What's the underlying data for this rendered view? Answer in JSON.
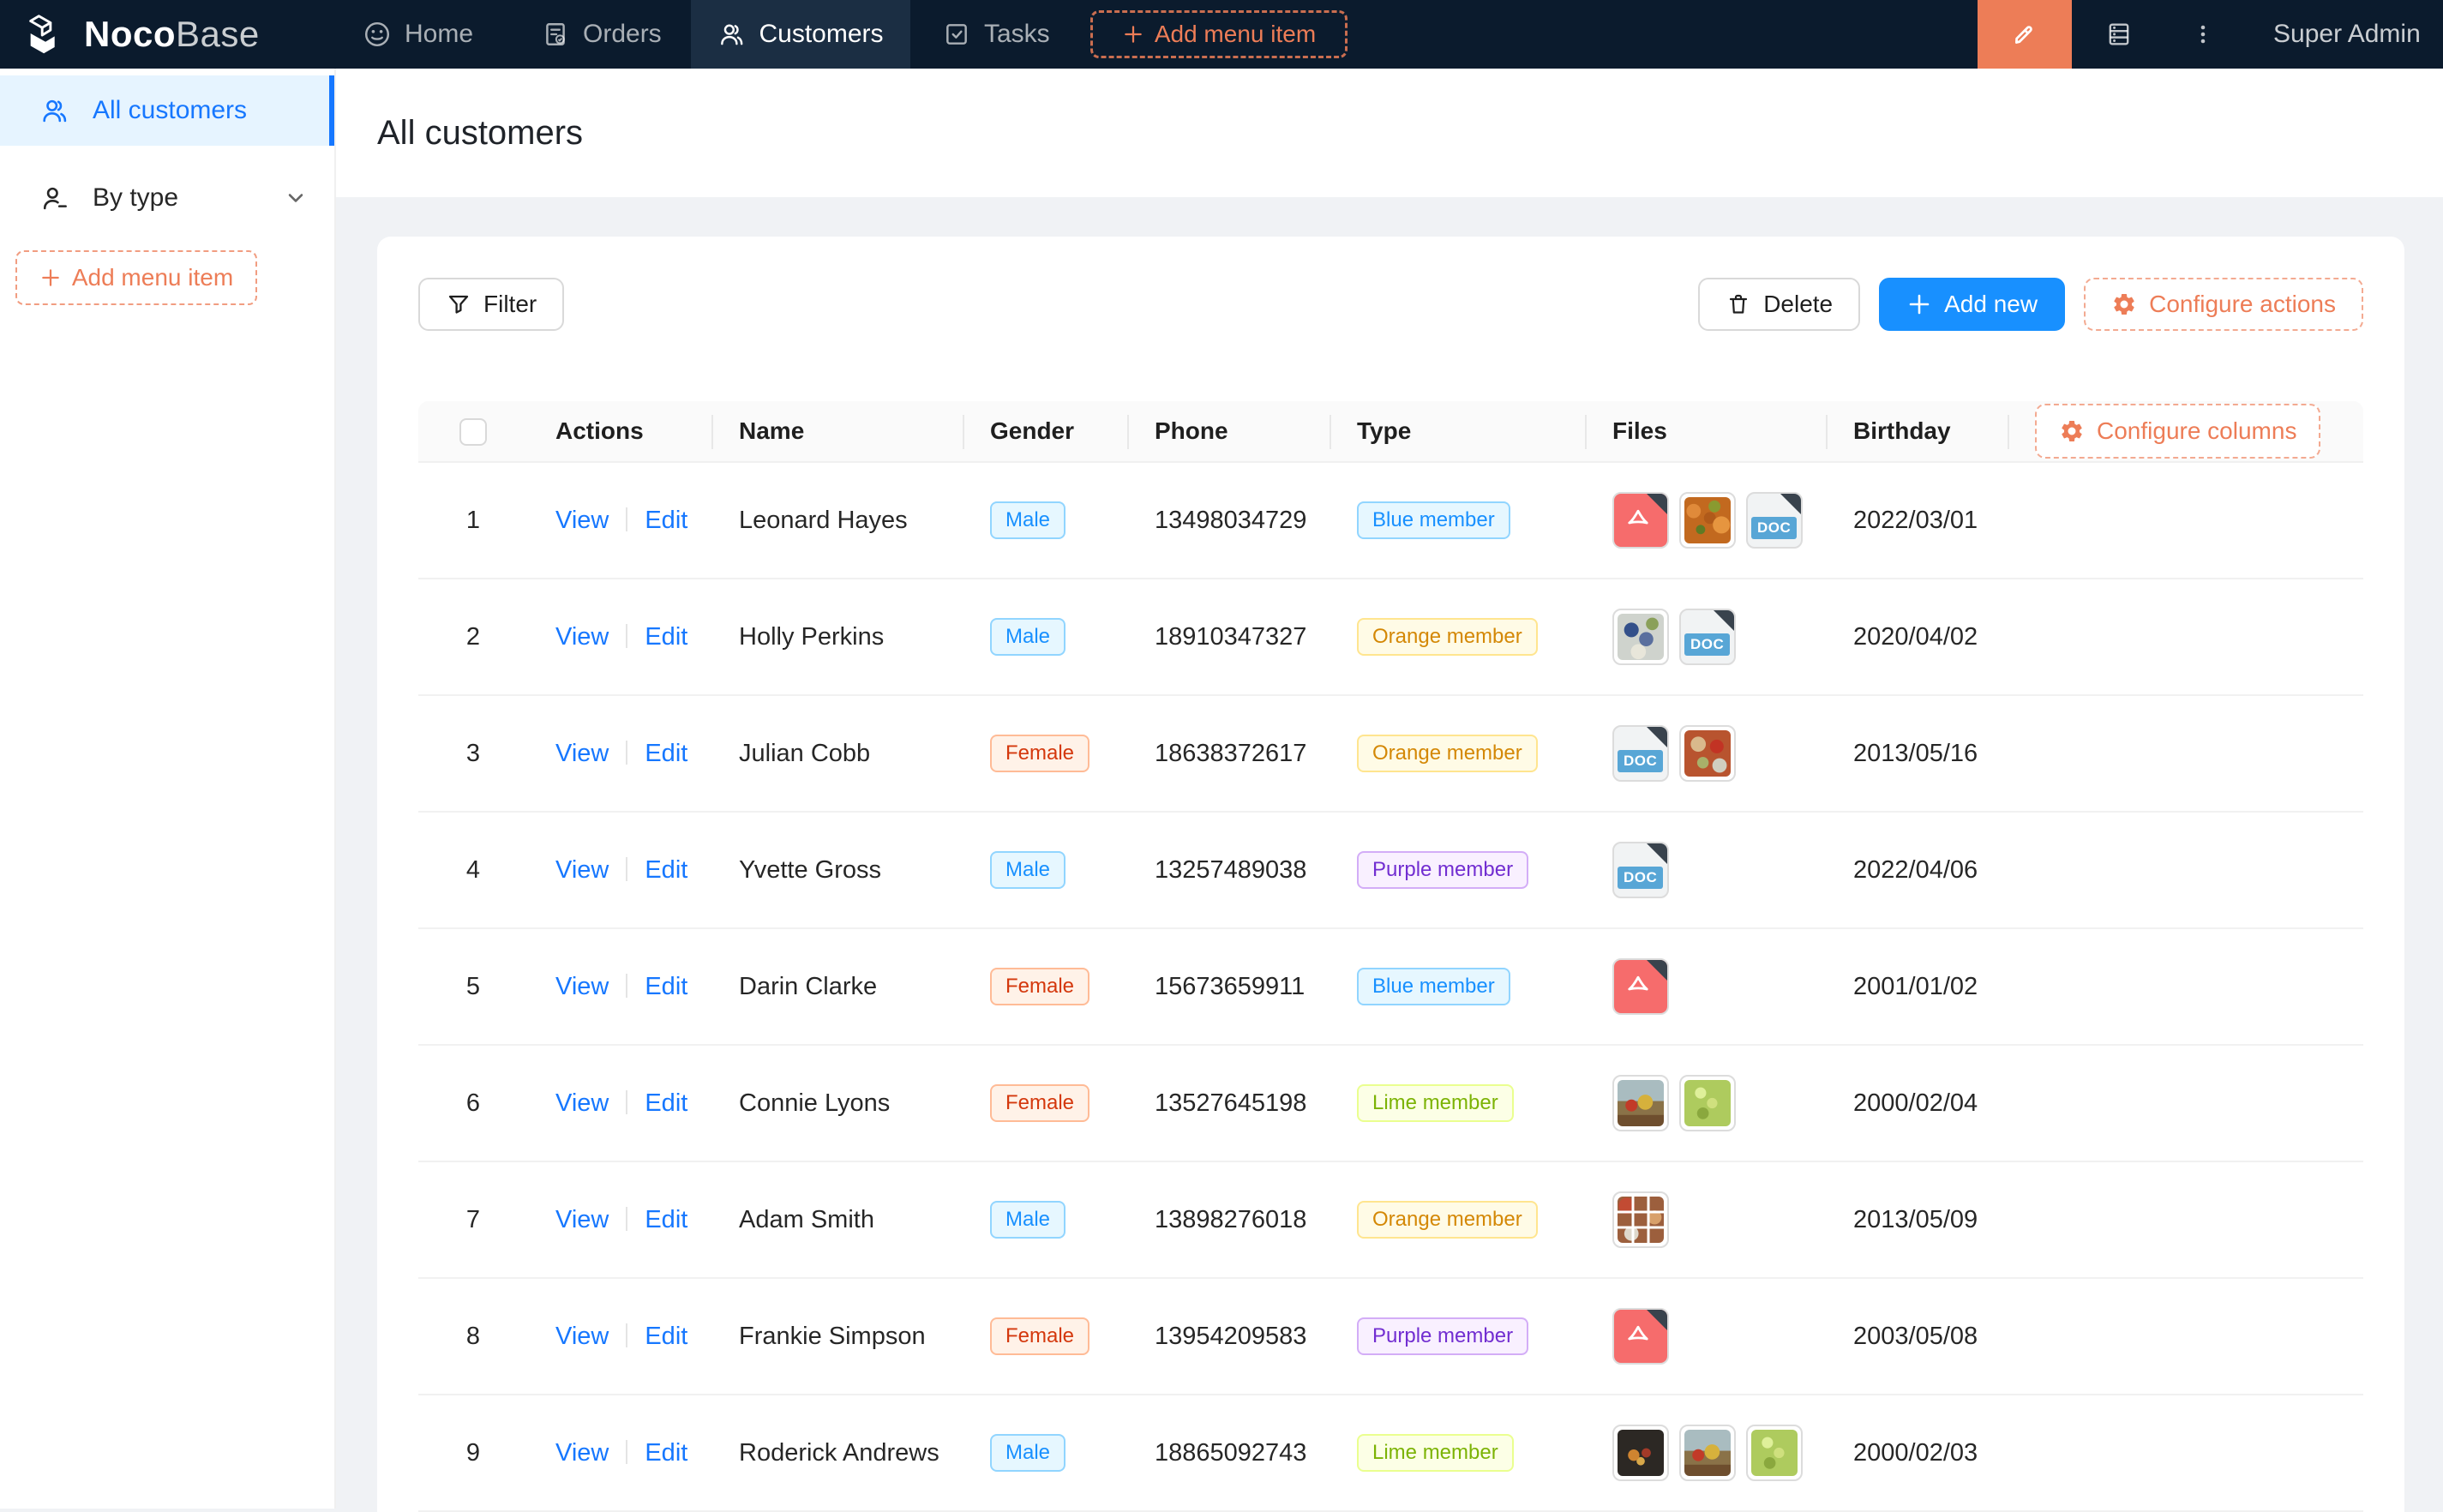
{
  "colors": {
    "navbar_bg": "#0b1b2d",
    "navbar_active_bg": "#1b2e43",
    "accent_orange": "#ed7d57",
    "primary_blue": "#1890ff",
    "link_blue": "#1677ff",
    "sidebar_active_bg": "#e6f4ff"
  },
  "header": {
    "brand": {
      "bold": "Noco",
      "light": "Base"
    },
    "nav": [
      {
        "label": "Home",
        "icon": "home-smiley-icon"
      },
      {
        "label": "Orders",
        "icon": "orders-receipt-icon"
      },
      {
        "label": "Customers",
        "icon": "customers-people-icon",
        "active": true
      },
      {
        "label": "Tasks",
        "icon": "tasks-check-icon"
      }
    ],
    "add_menu_label": "Add menu item",
    "user": "Super Admin"
  },
  "sidebar": {
    "items": [
      {
        "label": "All customers",
        "icon": "users-icon",
        "active": true
      },
      {
        "label": "By type",
        "icon": "user-group-icon",
        "collapsible": true
      }
    ],
    "add_menu_label": "Add menu item"
  },
  "page": {
    "title": "All customers"
  },
  "toolbar": {
    "filter_label": "Filter",
    "delete_label": "Delete",
    "add_new_label": "Add new",
    "configure_actions_label": "Configure actions"
  },
  "table": {
    "columns": {
      "actions": "Actions",
      "name": "Name",
      "gender": "Gender",
      "phone": "Phone",
      "type": "Type",
      "files": "Files",
      "birthday": "Birthday"
    },
    "configure_columns_label": "Configure columns",
    "actions": {
      "view": "View",
      "edit": "Edit"
    },
    "doc_badge": "DOC",
    "tag_colors": {
      "Male": {
        "bg": "#e6f7ff",
        "border": "#91d5ff",
        "text": "#1890ff"
      },
      "Female": {
        "bg": "#fff2e8",
        "border": "#ffbb96",
        "text": "#d4380d"
      },
      "Blue member": {
        "bg": "#e6f7ff",
        "border": "#91d5ff",
        "text": "#1890ff"
      },
      "Orange member": {
        "bg": "#fffbe6",
        "border": "#ffe58f",
        "text": "#d48806"
      },
      "Purple member": {
        "bg": "#f9f0ff",
        "border": "#d3adf7",
        "text": "#722ed1"
      },
      "Lime member": {
        "bg": "#fcffe6",
        "border": "#eaff8f",
        "text": "#7cb305"
      }
    },
    "rows": [
      {
        "index": 1,
        "name": "Leonard Hayes",
        "gender": "Male",
        "phone": "13498034729",
        "type": "Blue member",
        "files": [
          "pdf",
          "photo-warm",
          "doc"
        ],
        "birthday": "2022/03/01"
      },
      {
        "index": 2,
        "name": "Holly Perkins",
        "gender": "Male",
        "phone": "18910347327",
        "type": "Orange member",
        "files": [
          "photo-people",
          "doc"
        ],
        "birthday": "2020/04/02"
      },
      {
        "index": 3,
        "name": "Julian Cobb",
        "gender": "Female",
        "phone": "18638372617",
        "type": "Orange member",
        "files": [
          "doc",
          "photo-tomato"
        ],
        "birthday": "2013/05/16"
      },
      {
        "index": 4,
        "name": "Yvette Gross",
        "gender": "Male",
        "phone": "13257489038",
        "type": "Purple member",
        "files": [
          "doc"
        ],
        "birthday": "2022/04/06"
      },
      {
        "index": 5,
        "name": "Darin Clarke",
        "gender": "Female",
        "phone": "15673659911",
        "type": "Blue member",
        "files": [
          "pdf"
        ],
        "birthday": "2001/01/02"
      },
      {
        "index": 6,
        "name": "Connie Lyons",
        "gender": "Female",
        "phone": "13527645198",
        "type": "Lime member",
        "files": [
          "photo-fruit",
          "photo-grapes"
        ],
        "birthday": "2000/02/04"
      },
      {
        "index": 7,
        "name": "Adam Smith",
        "gender": "Male",
        "phone": "13898276018",
        "type": "Orange member",
        "files": [
          "photo-collage"
        ],
        "birthday": "2013/05/09"
      },
      {
        "index": 8,
        "name": "Frankie Simpson",
        "gender": "Female",
        "phone": "13954209583",
        "type": "Purple member",
        "files": [
          "pdf"
        ],
        "birthday": "2003/05/08"
      },
      {
        "index": 9,
        "name": "Roderick Andrews",
        "gender": "Male",
        "phone": "18865092743",
        "type": "Lime member",
        "files": [
          "photo-dark-fruit",
          "photo-fruit",
          "photo-grapes"
        ],
        "birthday": "2000/02/03"
      }
    ]
  }
}
